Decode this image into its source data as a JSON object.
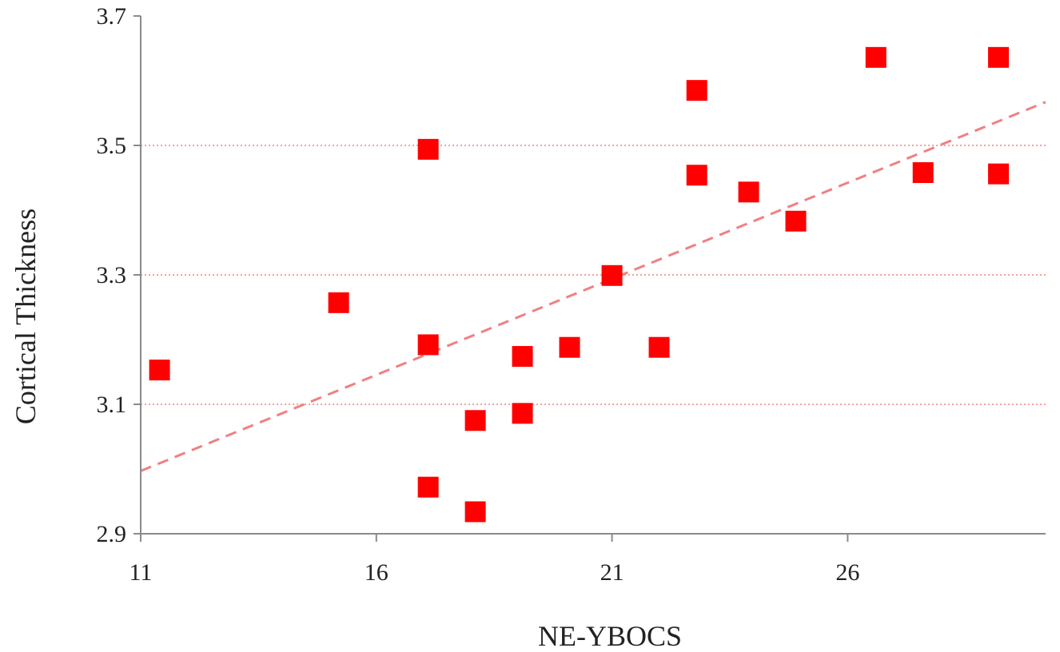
{
  "chart_data": {
    "type": "scatter",
    "title": "",
    "xlabel": "NE-YBOCS",
    "ylabel": "Cortical Thickness",
    "xlim": [
      11,
      30.2
    ],
    "ylim": [
      2.9,
      3.7
    ],
    "x_ticks": [
      11,
      16,
      21,
      26
    ],
    "y_ticks": [
      2.9,
      3.1,
      3.3,
      3.5,
      3.7
    ],
    "x_tick_labels": [
      "11",
      "16",
      "21",
      "26"
    ],
    "y_tick_labels": [
      "2.9",
      "3.1",
      "3.3",
      "3.5",
      "3.7"
    ],
    "gridlines": [
      3.1,
      3.3,
      3.5
    ],
    "grid": true,
    "series": [
      {
        "marker": "square",
        "color": "#ff0000",
        "x": [
          11.4,
          15.2,
          17.1,
          17.1,
          17.1,
          18.1,
          18.1,
          19.1,
          19.1,
          20.1,
          21.0,
          22.0,
          22.8,
          22.8,
          23.9,
          24.9,
          26.6,
          27.6,
          29.2,
          29.2
        ],
        "y": [
          3.153,
          3.257,
          3.494,
          3.192,
          2.972,
          3.075,
          2.934,
          3.174,
          3.086,
          3.188,
          3.299,
          3.188,
          3.585,
          3.454,
          3.428,
          3.383,
          3.636,
          3.458,
          3.636,
          3.456
        ]
      }
    ],
    "trendline": {
      "style": "dashed",
      "color": "#f08080",
      "x": [
        11,
        30.2
      ],
      "y": [
        2.997,
        3.567
      ]
    }
  }
}
